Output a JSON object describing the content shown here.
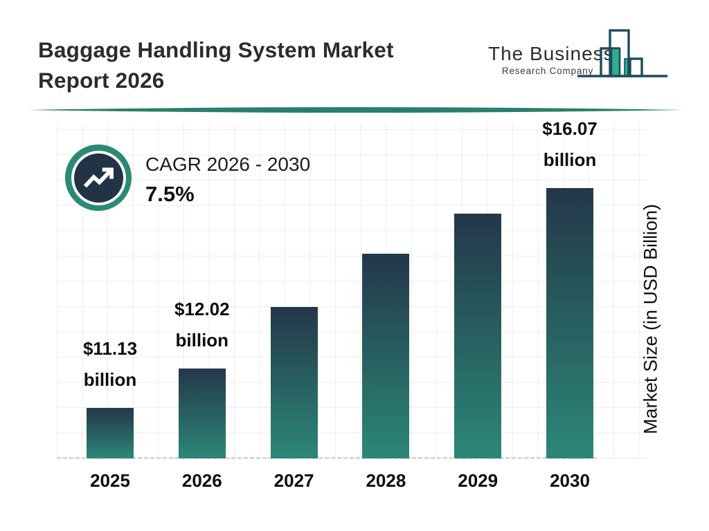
{
  "header": {
    "title": "Baggage Handling System Market Report 2026",
    "logo": {
      "name": "The Business",
      "subname": "Research Company",
      "outline_color": "#1e4a5e",
      "accent_green": "#2db189"
    },
    "divider_color": "#2a7e6c"
  },
  "cagr": {
    "label": "CAGR 2026 - 2030",
    "value": "7.5%",
    "ring_color": "#2a8a74",
    "core_color": "#203446",
    "icon": "trending-up-icon"
  },
  "chart_data": {
    "type": "bar",
    "title": "Baggage Handling System Market Report 2026",
    "categories": [
      "2025",
      "2026",
      "2027",
      "2028",
      "2029",
      "2030"
    ],
    "values": [
      11.13,
      12.02,
      13.4,
      14.6,
      15.5,
      16.07
    ],
    "values_estimated_from_pixels": [
      false,
      false,
      true,
      true,
      true,
      false
    ],
    "bar_labels": [
      "$11.13 billion",
      "$12.02 billion",
      null,
      null,
      null,
      "$16.07 billion"
    ],
    "xlabel": "",
    "ylabel": "Market Size (in USD Billion)",
    "ylim": [
      10,
      17
    ],
    "grid": true,
    "legend": "none",
    "bar_color_top": "#243749",
    "bar_color_bottom": "#2c8778"
  }
}
